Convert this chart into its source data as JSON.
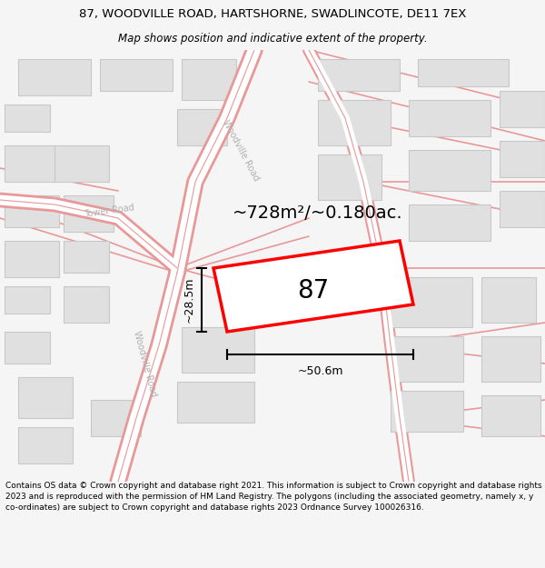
{
  "title": "87, WOODVILLE ROAD, HARTSHORNE, SWADLINCOTE, DE11 7EX",
  "subtitle": "Map shows position and indicative extent of the property.",
  "footer": "Contains OS data © Crown copyright and database right 2021. This information is subject to Crown copyright and database rights 2023 and is reproduced with the permission of HM Land Registry. The polygons (including the associated geometry, namely x, y co-ordinates) are subject to Crown copyright and database rights 2023 Ordnance Survey 100026316.",
  "area_text": "~728m²/~0.180ac.",
  "width_text": "~50.6m",
  "height_text": "~28.5m",
  "number_text": "87",
  "bg_color": "#f5f5f5",
  "map_bg": "#ffffff",
  "road_color": "#f0b8b8",
  "road_outline": "#e89898",
  "bld_fill": "#e0e0e0",
  "bld_edge": "#c8c8c8",
  "highlight_color": "#ff0000",
  "title_fs": 9.5,
  "subtitle_fs": 8.5,
  "footer_fs": 6.5,
  "area_fs": 14,
  "dim_fs": 9,
  "num_fs": 20,
  "road_label_fs": 7,
  "road_label_color": "#b0b0b0"
}
